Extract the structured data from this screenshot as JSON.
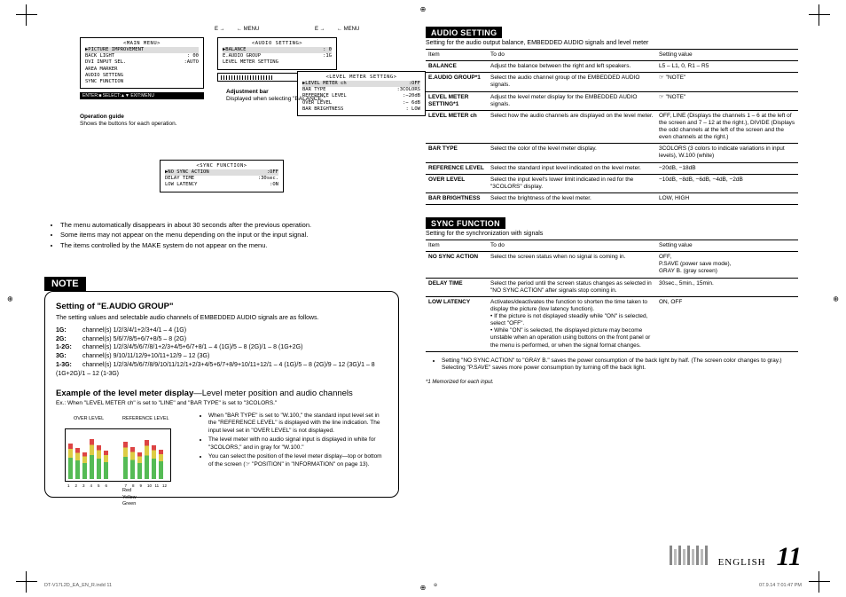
{
  "menus": {
    "main": {
      "title": "<MAIN MENU>",
      "items": [
        {
          "l": "PICTURE IMPROVEMENT",
          "r": ""
        },
        {
          "l": "BACK LIGHT",
          "r": ": 00"
        },
        {
          "l": "DVI INPUT SEL.",
          "r": ":AUTO"
        },
        {
          "l": "AREA MARKER",
          "r": ""
        },
        {
          "l": "AUDIO SETTING",
          "r": ""
        },
        {
          "l": "SYNC FUNCTION",
          "r": ""
        }
      ]
    },
    "audio": {
      "title": "<AUDIO SETTING>",
      "items": [
        {
          "l": "BALANCE",
          "r": ": 0"
        },
        {
          "l": "E.AUDIO GROUP",
          "r": ":1G"
        },
        {
          "l": "LEVEL METER SETTING",
          "r": ""
        }
      ]
    },
    "level": {
      "title": "<LEVEL METER SETTING>",
      "items": [
        {
          "l": "LEVEL METER ch",
          "r": ":OFF"
        },
        {
          "l": "BAR TYPE",
          "r": ":3COLORS"
        },
        {
          "l": "REFERENCE LEVEL",
          "r": ":−20dB"
        },
        {
          "l": "OVER LEVEL",
          "r": ":− 6dB"
        },
        {
          "l": "BAR BRIGHTNESS",
          "r": ": LOW"
        }
      ]
    },
    "sync": {
      "title": "<SYNC FUNCTION>",
      "items": [
        {
          "l": "NO SYNC ACTION",
          "r": ":OFF"
        },
        {
          "l": "DELAY TIME",
          "r": ":30sec."
        },
        {
          "l": "LOW LATENCY",
          "r": ":ON"
        }
      ]
    },
    "enter_bar": "ENTER:■ SELECT:▲▼ EXIT:MENU",
    "adj_label": "Adjustment bar",
    "adj_desc": "Displayed when selecting \"BALANCE.\"",
    "op_label": "Operation guide",
    "op_desc": "Shows the buttons for each operation.",
    "arrow_e": "E →",
    "arrow_menu": "← MENU"
  },
  "main_bullets": [
    "The menu automatically disappears in about 30 seconds after the previous operation.",
    "Some items may not appear on the menu depending on the input or the input signal.",
    "The items controlled by the MAKE system do not appear on the menu."
  ],
  "note": {
    "tag": "NOTE",
    "heading": "Setting of \"E.AUDIO GROUP\"",
    "sub": "The setting values and selectable audio channels of EMBEDDED AUDIO signals are as follows.",
    "groups": [
      {
        "k": "1G:",
        "v": "channel(s) 1/2/3/4/1+2/3+4/1 – 4 (1G)"
      },
      {
        "k": "2G:",
        "v": "channel(s) 5/6/7/8/5+6/7+8/5 – 8 (2G)"
      },
      {
        "k": "1-2G:",
        "v": "channel(s) 1/2/3/4/5/6/7/8/1+2/3+4/5+6/7+8/1 – 4 (1G)/5 – 8 (2G)/1 – 8 (1G+2G)"
      },
      {
        "k": "3G:",
        "v": "channel(s) 9/10/11/12/9+10/11+12/9 – 12 (3G)"
      },
      {
        "k": "1-3G:",
        "v": "channel(s) 1/2/3/4/5/6/7/8/9/10/11/12/1+2/3+4/5+6/7+8/9+10/11+12/1 – 4 (1G)/5 – 8 (2G)/9 – 12 (3G)/1 – 8 (1G+2G)/1 – 12 (1-3G)"
      }
    ],
    "ex_heading": "Example of the level meter display",
    "ex_tail": "—Level meter position and audio channels",
    "ex_sub": "Ex.: When \"LEVEL METER ch\" is set to \"LINE\" and \"BAR TYPE\" is set to \"3COLORS.\"",
    "over": "OVER LEVEL",
    "ref": "REFERENCE LEVEL",
    "colors": [
      {
        "label": "Red",
        "c": "#d44"
      },
      {
        "label": "Yellow",
        "c": "#dc4"
      },
      {
        "label": "Green",
        "c": "#5b5"
      }
    ],
    "digits": [
      "1",
      "2",
      "3",
      "4",
      "5",
      "6",
      "7",
      "8",
      "9",
      "10",
      "11",
      "12"
    ],
    "ex_bullets": [
      "When \"BAR TYPE\" is set to \"W.100,\" the standard input level set in the \"REFERENCE LEVEL\" is displayed with the line indication. The input level set in \"OVER LEVEL\" is not displayed.",
      "The level meter with no audio signal input is displayed in white for \"3COLORS,\" and in gray for \"W.100.\"",
      "You can select the position of the level meter display—top or bottom of the screen (☞ \"POSITION\" in \"INFORMATION\" on page 13)."
    ]
  },
  "audio_section": {
    "tag": "AUDIO SETTING",
    "desc": "Setting for the audio output balance, EMBEDDED AUDIO signals and level meter",
    "head": [
      "Item",
      "To do",
      "Setting value"
    ],
    "rows": [
      {
        "item": "BALANCE",
        "indent": false,
        "todo": "Adjust the balance between the right and left speakers.",
        "val": "L5 – L1, 0, R1 – R5"
      },
      {
        "item": "E.AUDIO GROUP*1",
        "indent": false,
        "todo": "Select the audio channel group of the EMBEDDED AUDIO signals.",
        "val": "☞ \"NOTE\""
      },
      {
        "item": "LEVEL METER SETTING*1",
        "indent": false,
        "todo": "Adjust the level meter display for the EMBEDDED AUDIO signals.",
        "val": "☞ \"NOTE\""
      },
      {
        "item": "LEVEL METER ch",
        "indent": true,
        "todo": "Select how the audio channels are displayed on the level meter.",
        "val": "OFF, LINE (Displays the channels 1 – 6 at the left of the screen and 7 – 12 at the right.), DIVIDE (Displays the odd channels at the left of the screen and the even channels at the right.)"
      },
      {
        "item": "BAR TYPE",
        "indent": true,
        "todo": "Select the color of the level meter display.",
        "val": "3COLORS (3 colors to indicate variations in input levels), W.100 (white)"
      },
      {
        "item": "REFERENCE LEVEL",
        "indent": true,
        "todo": "Select the standard input level indicated on the level meter.",
        "val": "−20dB, −18dB"
      },
      {
        "item": "OVER LEVEL",
        "indent": true,
        "todo": "Select the input level's lower limit indicated in red for the \"3COLORS\" display.",
        "val": "−10dB, −8dB, −6dB, −4dB, −2dB"
      },
      {
        "item": "BAR BRIGHTNESS",
        "indent": true,
        "todo": "Select the brightness of the level meter.",
        "val": "LOW, HIGH"
      }
    ]
  },
  "sync_section": {
    "tag": "SYNC FUNCTION",
    "desc": "Setting for the synchronization with signals",
    "head": [
      "Item",
      "To do",
      "Setting value"
    ],
    "rows": [
      {
        "item": "NO SYNC ACTION",
        "todo": "Select the screen status when no signal is coming in.",
        "val": "OFF,\nP.SAVE (power save mode),\nGRAY B. (gray screen)"
      },
      {
        "item": "DELAY TIME",
        "todo": "Select the period until the screen status changes as selected in \"NO SYNC ACTION\" after signals stop coming in.",
        "val": "30sec., 5min., 15min."
      },
      {
        "item": "LOW LATENCY",
        "todo": "Activates/deactivates the function to shorten the time taken to display the picture (low latency function).\n• If the picture is not displayed steadily while \"ON\" is selected, select \"OFF\".\n• While \"ON\" is selected, the displayed picture may become unstable when an operation using buttons on the front panel or the menu is performed, or when the signal format changes.",
        "val": "ON, OFF"
      }
    ]
  },
  "post_bullets": [
    "Setting \"NO SYNC ACTION\" to \"GRAY B.\" saves the power consumption of the back light by half. (The screen color changes to gray.)\nSelecting \"P.SAVE\" saves more power consumption by turning off the back light."
  ],
  "memorized": "*1 Memorized for each input.",
  "footer": {
    "lang": "ENGLISH",
    "page": "11",
    "file": "DT-V17L2D_EA_EN_R.indd   11",
    "time": "07.9.14   7:01:47 PM"
  }
}
